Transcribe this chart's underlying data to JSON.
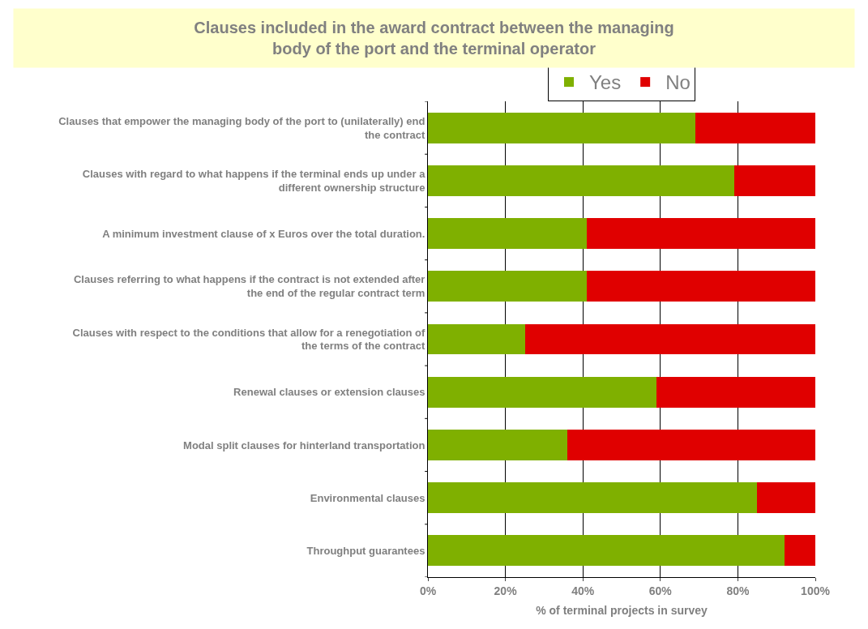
{
  "chart_data": {
    "type": "bar",
    "orientation": "horizontal",
    "stacked": true,
    "title": "Clauses included in the award contract between the managing body of the port and the terminal operator",
    "xlabel": "% of terminal projects in survey",
    "categories": [
      "Clauses that empower the managing body of the port to (unilaterally) end the contract",
      "Clauses with regard to what happens if the terminal ends up under a different ownership structure",
      "A minimum investment clause of x Euros over the total duration.",
      "Clauses referring to what happens if the contract is not extended after the end of the regular contract term",
      "Clauses with respect to the conditions that allow for a renegotiation of the terms of the contract",
      "Renewal clauses or extension clauses",
      "Modal split clauses for hinterland transportation",
      "Environmental clauses",
      "Throughput guarantees"
    ],
    "series": [
      {
        "name": "Yes",
        "color": "#7fb000",
        "values": [
          69,
          79,
          41,
          41,
          25,
          59,
          36,
          85,
          92
        ]
      },
      {
        "name": "No",
        "color": "#e00000",
        "values": [
          31,
          21,
          59,
          59,
          75,
          41,
          64,
          15,
          8
        ]
      }
    ],
    "xlim": [
      0,
      100
    ],
    "xticks": [
      {
        "value": 0,
        "label": "0%"
      },
      {
        "value": 20,
        "label": "20%"
      },
      {
        "value": 40,
        "label": "40%"
      },
      {
        "value": 60,
        "label": "60%"
      },
      {
        "value": 80,
        "label": "80%"
      },
      {
        "value": 100,
        "label": "100%"
      }
    ],
    "grid": "x",
    "legend": "top"
  }
}
